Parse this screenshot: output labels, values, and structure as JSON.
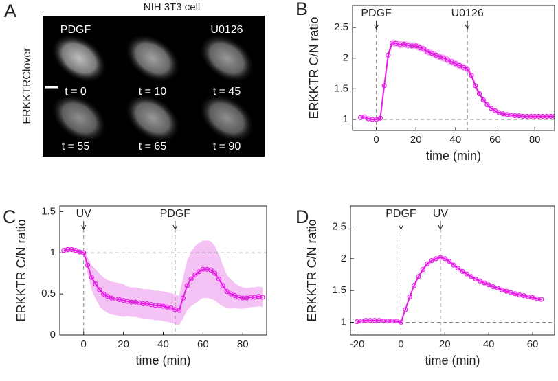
{
  "panel_a": {
    "label": "A",
    "title": "NIH 3T3 cell",
    "ylabel": "ERKKTRClover",
    "treatments": [
      "PDGF",
      "U0126"
    ],
    "times": [
      "t = 0",
      "t = 10",
      "t = 45",
      "t = 55",
      "t = 65",
      "t = 90"
    ]
  },
  "chart_data": [
    {
      "type": "line",
      "panel": "B",
      "xlabel": "time (min)",
      "ylabel": "ERKKTR C/N ratio",
      "color": "#e619e6",
      "band_color": "#f2b3f2",
      "xlim": [
        -12,
        90
      ],
      "xticks": [
        0,
        20,
        40,
        60,
        80
      ],
      "ylim": [
        0.82,
        2.86
      ],
      "yticks": [
        1,
        1.5,
        2,
        2.5
      ],
      "hlines": [
        1
      ],
      "annotations": [
        {
          "text": "PDGF",
          "x": 0
        },
        {
          "text": "U0126",
          "x": 46
        }
      ],
      "x": [
        -8,
        -6,
        -4,
        -2,
        0,
        2,
        4,
        6,
        8,
        10,
        12,
        14,
        16,
        18,
        20,
        22,
        24,
        26,
        28,
        30,
        32,
        34,
        36,
        38,
        40,
        42,
        44,
        46,
        48,
        50,
        52,
        54,
        56,
        58,
        60,
        62,
        64,
        66,
        68,
        70,
        72,
        74,
        76,
        78,
        80,
        82,
        84,
        86,
        88,
        90
      ],
      "values": [
        1.03,
        1.04,
        1.01,
        1.0,
        1.0,
        1.02,
        1.55,
        2.05,
        2.25,
        2.24,
        2.22,
        2.23,
        2.21,
        2.2,
        2.2,
        2.17,
        2.15,
        2.1,
        2.08,
        2.05,
        2.02,
        2.0,
        1.97,
        1.94,
        1.91,
        1.88,
        1.85,
        1.82,
        1.72,
        1.55,
        1.42,
        1.32,
        1.24,
        1.18,
        1.14,
        1.11,
        1.09,
        1.08,
        1.07,
        1.06,
        1.06,
        1.05,
        1.05,
        1.05,
        1.05,
        1.05,
        1.05,
        1.05,
        1.05,
        1.05
      ],
      "errors": [
        0.02,
        0.02,
        0.02,
        0.02,
        0.02,
        0.03,
        0.05,
        0.06,
        0.06,
        0.06,
        0.06,
        0.06,
        0.06,
        0.06,
        0.06,
        0.06,
        0.06,
        0.06,
        0.06,
        0.06,
        0.06,
        0.06,
        0.06,
        0.06,
        0.06,
        0.06,
        0.06,
        0.06,
        0.05,
        0.05,
        0.04,
        0.04,
        0.03,
        0.03,
        0.03,
        0.03,
        0.03,
        0.03,
        0.03,
        0.03,
        0.03,
        0.03,
        0.03,
        0.03,
        0.03,
        0.03,
        0.03,
        0.03,
        0.03,
        0.03
      ]
    },
    {
      "type": "line",
      "panel": "C",
      "xlabel": "time (min)",
      "ylabel": "ERKKTR C/N ratio",
      "color": "#e619e6",
      "band_color": "#f2b3f2",
      "xlim": [
        -12,
        92
      ],
      "xticks": [
        0,
        20,
        40,
        60,
        80
      ],
      "ylim": [
        0,
        1.57
      ],
      "yticks": [
        0,
        0.5,
        1,
        1.5
      ],
      "hlines": [
        1
      ],
      "annotations": [
        {
          "text": "UV",
          "x": 0
        },
        {
          "text": "PDGF",
          "x": 46
        }
      ],
      "x": [
        -10,
        -8,
        -6,
        -4,
        -2,
        0,
        2,
        4,
        6,
        8,
        10,
        12,
        14,
        16,
        18,
        20,
        22,
        24,
        26,
        28,
        30,
        32,
        34,
        36,
        38,
        40,
        42,
        44,
        46,
        48,
        50,
        52,
        54,
        56,
        58,
        60,
        62,
        64,
        66,
        68,
        70,
        72,
        74,
        76,
        78,
        80,
        82,
        84,
        86,
        88,
        90
      ],
      "values": [
        1.03,
        1.04,
        1.04,
        1.03,
        1.01,
        1.0,
        0.85,
        0.7,
        0.62,
        0.55,
        0.5,
        0.47,
        0.45,
        0.44,
        0.43,
        0.42,
        0.41,
        0.4,
        0.4,
        0.39,
        0.38,
        0.38,
        0.37,
        0.36,
        0.36,
        0.35,
        0.34,
        0.33,
        0.31,
        0.3,
        0.45,
        0.6,
        0.68,
        0.73,
        0.77,
        0.8,
        0.8,
        0.79,
        0.75,
        0.68,
        0.6,
        0.53,
        0.5,
        0.48,
        0.46,
        0.45,
        0.45,
        0.46,
        0.46,
        0.47,
        0.46
      ],
      "errors": [
        0.03,
        0.03,
        0.03,
        0.03,
        0.03,
        0.03,
        0.1,
        0.15,
        0.18,
        0.2,
        0.2,
        0.2,
        0.2,
        0.2,
        0.2,
        0.2,
        0.18,
        0.18,
        0.18,
        0.18,
        0.18,
        0.18,
        0.18,
        0.18,
        0.18,
        0.18,
        0.18,
        0.18,
        0.18,
        0.18,
        0.25,
        0.3,
        0.33,
        0.35,
        0.35,
        0.35,
        0.35,
        0.35,
        0.33,
        0.3,
        0.25,
        0.2,
        0.18,
        0.15,
        0.14,
        0.13,
        0.12,
        0.12,
        0.12,
        0.12,
        0.12
      ]
    },
    {
      "type": "line",
      "panel": "D",
      "xlabel": "time (min)",
      "ylabel": "ERKKTR C/N ratio",
      "color": "#e619e6",
      "band_color": "#f2b3f2",
      "xlim": [
        -23,
        70
      ],
      "xticks": [
        -20,
        0,
        20,
        40,
        60
      ],
      "ylim": [
        0.8,
        2.83
      ],
      "yticks": [
        1,
        1.5,
        2,
        2.5
      ],
      "hlines": [
        1
      ],
      "annotations": [
        {
          "text": "PDGF",
          "x": 0
        },
        {
          "text": "UV",
          "x": 18
        }
      ],
      "x": [
        -20,
        -18,
        -16,
        -14,
        -12,
        -10,
        -8,
        -6,
        -4,
        -2,
        0,
        2,
        4,
        6,
        8,
        10,
        12,
        14,
        16,
        18,
        20,
        22,
        24,
        26,
        28,
        30,
        32,
        34,
        36,
        38,
        40,
        42,
        44,
        46,
        48,
        50,
        52,
        54,
        56,
        58,
        60,
        62,
        64
      ],
      "values": [
        1.01,
        1.02,
        1.03,
        1.03,
        1.03,
        1.03,
        1.02,
        1.02,
        1.02,
        1.02,
        1.0,
        1.2,
        1.4,
        1.58,
        1.72,
        1.83,
        1.92,
        1.97,
        2.0,
        2.02,
        2.0,
        1.96,
        1.9,
        1.85,
        1.8,
        1.76,
        1.72,
        1.68,
        1.65,
        1.62,
        1.59,
        1.56,
        1.54,
        1.51,
        1.49,
        1.47,
        1.45,
        1.43,
        1.42,
        1.4,
        1.39,
        1.37,
        1.36
      ],
      "errors": [
        0.02,
        0.02,
        0.02,
        0.02,
        0.02,
        0.02,
        0.02,
        0.02,
        0.02,
        0.02,
        0.02,
        0.03,
        0.03,
        0.03,
        0.03,
        0.03,
        0.03,
        0.03,
        0.03,
        0.03,
        0.03,
        0.03,
        0.03,
        0.03,
        0.03,
        0.03,
        0.03,
        0.03,
        0.03,
        0.03,
        0.03,
        0.03,
        0.03,
        0.03,
        0.03,
        0.03,
        0.03,
        0.03,
        0.03,
        0.03,
        0.03,
        0.03,
        0.03
      ]
    }
  ]
}
